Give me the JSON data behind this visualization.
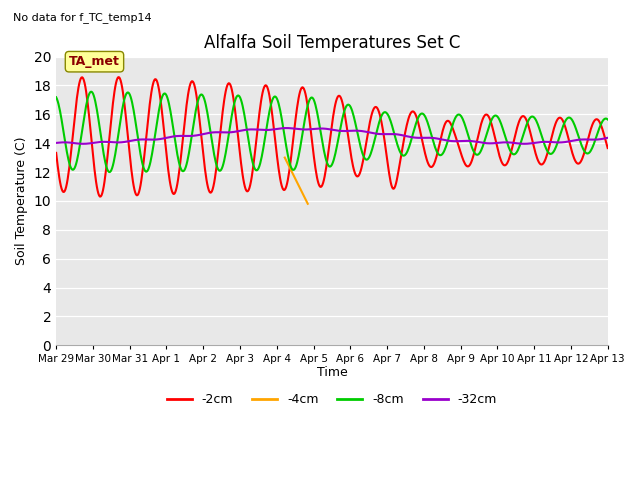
{
  "title": "Alfalfa Soil Temperatures Set C",
  "subtitle": "No data for f_TC_temp14",
  "ylabel": "Soil Temperature (C)",
  "xlabel": "Time",
  "ylim": [
    0,
    20
  ],
  "yticks": [
    0,
    2,
    4,
    6,
    8,
    10,
    12,
    14,
    16,
    18,
    20
  ],
  "fig_facecolor": "#ffffff",
  "plot_facecolor": "#e8e8e8",
  "ta_met_label": "TA_met",
  "ta_met_box_color": "#ffff99",
  "ta_met_text_color": "#8b0000",
  "colors": {
    "2cm": "#ff0000",
    "4cm": "#ffa500",
    "8cm": "#00cc00",
    "32cm": "#9900cc"
  },
  "line_width": 1.5,
  "date_labels": [
    "Mar 29",
    "Mar 30",
    "Mar 31",
    "Apr 1",
    "Apr 2",
    "Apr 3",
    "Apr 4",
    "Apr 5",
    "Apr 6",
    "Apr 7",
    "Apr 8",
    "Apr 9",
    "Apr 10",
    "Apr 11",
    "Apr 12",
    "Apr 13"
  ],
  "legend_labels": [
    "-2cm",
    "-4cm",
    "-8cm",
    "-32cm"
  ],
  "legend_colors": [
    "#ff0000",
    "#ffa500",
    "#00cc00",
    "#9900cc"
  ],
  "grid_color": "#cccccc",
  "title_fontsize": 12,
  "axis_fontsize": 9,
  "tick_fontsize": 7.5
}
